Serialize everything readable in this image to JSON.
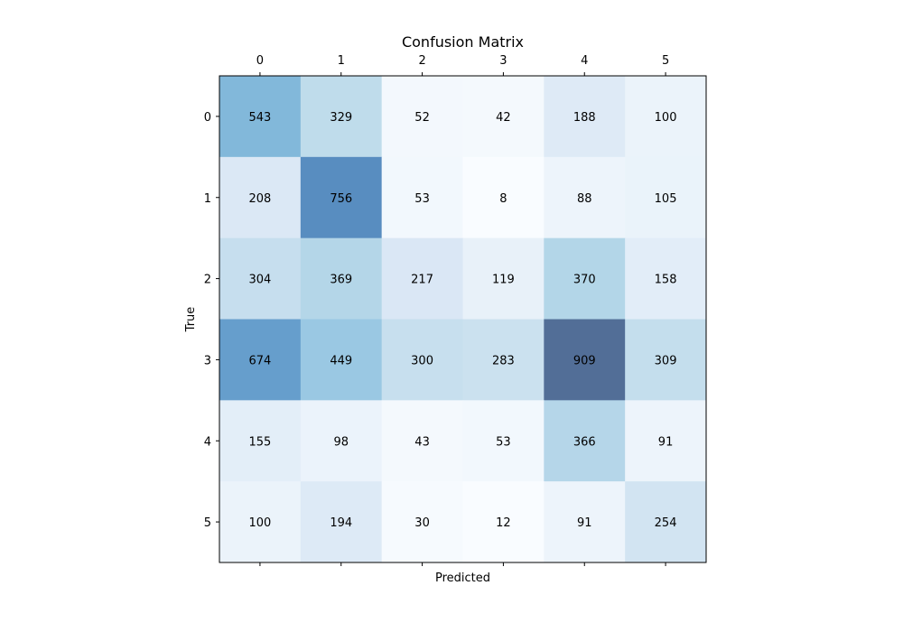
{
  "chart_data": {
    "type": "heatmap",
    "title": "Confusion Matrix",
    "xlabel": "Predicted",
    "ylabel": "True",
    "x_categories": [
      "0",
      "1",
      "2",
      "3",
      "4",
      "5"
    ],
    "y_categories": [
      "0",
      "1",
      "2",
      "3",
      "4",
      "5"
    ],
    "x_ticks_position": "top",
    "values": [
      [
        543,
        329,
        52,
        42,
        188,
        100
      ],
      [
        208,
        756,
        53,
        8,
        88,
        105
      ],
      [
        304,
        369,
        217,
        119,
        370,
        158
      ],
      [
        674,
        449,
        300,
        283,
        909,
        309
      ],
      [
        155,
        98,
        43,
        53,
        366,
        91
      ],
      [
        100,
        194,
        30,
        12,
        91,
        254
      ]
    ],
    "colormap": "Blues",
    "color_low": "#f7fbff",
    "color_high": "#08306b",
    "cell_alpha": 0.7,
    "grid": false
  }
}
